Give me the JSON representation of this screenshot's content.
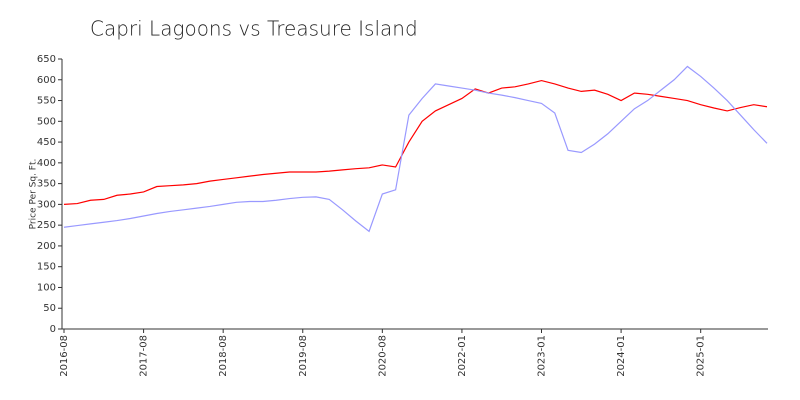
{
  "chart_data": {
    "type": "line",
    "title": "Capri Lagoons vs Treasure Island",
    "ylabel": "Price Per Sq. Ft.",
    "categories": [
      "2016-08",
      null,
      null,
      null,
      null,
      null,
      "2017-08",
      null,
      null,
      null,
      null,
      null,
      "2018-08",
      null,
      null,
      null,
      null,
      null,
      "2019-08",
      null,
      null,
      null,
      null,
      null,
      "2020-08",
      null,
      null,
      null,
      null,
      null,
      "2022-01",
      null,
      null,
      null,
      null,
      null,
      "2023-01",
      null,
      null,
      null,
      null,
      null,
      "2024-01",
      null,
      null,
      null,
      null,
      null,
      "2025-01",
      null,
      null,
      null,
      null,
      null
    ],
    "series": [
      {
        "color": "#ff0000",
        "values": [
          300,
          302,
          310,
          312,
          322,
          325,
          330,
          343,
          345,
          347,
          350,
          356,
          360,
          364,
          368,
          372,
          375,
          378,
          378,
          378,
          380,
          383,
          386,
          388,
          395,
          390,
          450,
          500,
          525,
          540,
          555,
          578,
          568,
          580,
          583,
          590,
          598,
          590,
          580,
          572,
          575,
          565,
          550,
          568,
          565,
          560,
          555,
          550,
          540,
          532,
          525,
          533,
          540,
          535
        ]
      },
      {
        "color": "#9999ff",
        "values": [
          245,
          249,
          253,
          257,
          261,
          266,
          272,
          278,
          283,
          287,
          291,
          295,
          300,
          305,
          307,
          307,
          310,
          314,
          317,
          318,
          312,
          287,
          260,
          235,
          325,
          335,
          515,
          555,
          590,
          585,
          580,
          575,
          568,
          563,
          557,
          550,
          543,
          520,
          430,
          425,
          445,
          470,
          500,
          530,
          550,
          575,
          600,
          632,
          608,
          580,
          550,
          515,
          480,
          447
        ]
      }
    ],
    "ylim": [
      0,
      650
    ],
    "yticks": [
      0,
      50,
      100,
      150,
      200,
      250,
      300,
      350,
      400,
      450,
      500,
      550,
      600,
      650
    ]
  }
}
